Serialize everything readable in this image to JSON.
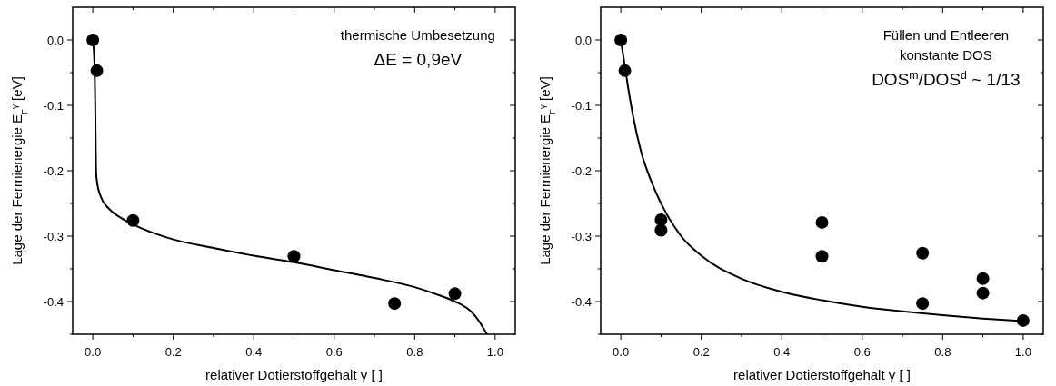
{
  "chart_data": [
    {
      "type": "scatter",
      "xlabel": "relativer Dotierstoffgehalt γ [  ]",
      "ylabel": "Lage der Fermienergie E$_{F}$$^{γ}$ [eV]",
      "annotations": [
        "thermische Umbesetzung",
        "ΔE = 0,9eV"
      ],
      "xlim": [
        -0.05,
        1.05
      ],
      "ylim": [
        -0.45,
        0.05
      ],
      "xticks": [
        {
          "value": 0,
          "label": "0.0"
        },
        {
          "value": 0.1,
          "label": null
        },
        {
          "value": 0.2,
          "label": "0.2"
        },
        {
          "value": 0.3,
          "label": null
        },
        {
          "value": 0.4,
          "label": "0.4"
        },
        {
          "value": 0.5,
          "label": null
        },
        {
          "value": 0.6,
          "label": "0.6"
        },
        {
          "value": 0.7,
          "label": null
        },
        {
          "value": 0.8,
          "label": "0.8"
        },
        {
          "value": 0.9,
          "label": null
        },
        {
          "value": 1,
          "label": "1.0"
        }
      ],
      "yticks": [
        {
          "value": -0.45,
          "label": null
        },
        {
          "value": -0.4,
          "label": "-0.4"
        },
        {
          "value": -0.35,
          "label": null
        },
        {
          "value": -0.3,
          "label": "-0.3"
        },
        {
          "value": -0.25,
          "label": null
        },
        {
          "value": -0.2,
          "label": "-0.2"
        },
        {
          "value": -0.15,
          "label": null
        },
        {
          "value": -0.1,
          "label": "-0.1"
        },
        {
          "value": -0.05,
          "label": null
        },
        {
          "value": 0,
          "label": "0.0"
        }
      ],
      "marker": "circle",
      "series": [
        {
          "type": "line",
          "marker": "none",
          "color": "#000000",
          "x": [
            0,
            0.003,
            0.005,
            0.006,
            0.007,
            0.008,
            0.01,
            0.02,
            0.04,
            0.07,
            0.1,
            0.15,
            0.2,
            0.3,
            0.4,
            0.5,
            0.6,
            0.7,
            0.8,
            0.85,
            0.9,
            0.94,
            0.96,
            0.975,
            0.98
          ],
          "values": [
            0,
            -0.02,
            -0.06,
            -0.1,
            -0.15,
            -0.2,
            -0.215,
            -0.24,
            -0.258,
            -0.272,
            -0.282,
            -0.295,
            -0.305,
            -0.318,
            -0.33,
            -0.34,
            -0.352,
            -0.364,
            -0.378,
            -0.388,
            -0.4,
            -0.415,
            -0.43,
            -0.445,
            -0.45
          ]
        },
        {
          "color": "#000000",
          "x": [
            0,
            0.01,
            0.1,
            0.5,
            0.75,
            0.9
          ],
          "values": [
            0,
            -0.047,
            -0.276,
            -0.331,
            -0.403,
            -0.388
          ]
        }
      ]
    },
    {
      "type": "scatter",
      "xlabel": "relativer Dotierstoffgehalt γ [  ]",
      "ylabel": "Lage der Fermienergie E$_{F}$$^{γ}$ [eV]",
      "annotations": [
        "Füllen und Entleeren",
        "konstante DOS",
        "DOS$^{m}$/DOS$^{d}$ ~ 1/13"
      ],
      "xlim": [
        -0.05,
        1.05
      ],
      "ylim": [
        -0.45,
        0.05
      ],
      "xticks": [
        {
          "value": 0,
          "label": "0.0"
        },
        {
          "value": 0.1,
          "label": null
        },
        {
          "value": 0.2,
          "label": "0.2"
        },
        {
          "value": 0.3,
          "label": null
        },
        {
          "value": 0.4,
          "label": "0.4"
        },
        {
          "value": 0.5,
          "label": null
        },
        {
          "value": 0.6,
          "label": "0.6"
        },
        {
          "value": 0.7,
          "label": null
        },
        {
          "value": 0.8,
          "label": "0.8"
        },
        {
          "value": 0.9,
          "label": null
        },
        {
          "value": 1,
          "label": "1.0"
        }
      ],
      "yticks": [
        {
          "value": -0.45,
          "label": null
        },
        {
          "value": -0.4,
          "label": "-0.4"
        },
        {
          "value": -0.35,
          "label": null
        },
        {
          "value": -0.3,
          "label": "-0.3"
        },
        {
          "value": -0.25,
          "label": null
        },
        {
          "value": -0.2,
          "label": "-0.2"
        },
        {
          "value": -0.15,
          "label": null
        },
        {
          "value": -0.1,
          "label": "-0.1"
        },
        {
          "value": -0.05,
          "label": null
        },
        {
          "value": 0,
          "label": "0.0"
        }
      ],
      "marker": "circle",
      "series": [
        {
          "type": "line",
          "marker": "none",
          "color": "#000000",
          "x": [
            0,
            0.01,
            0.02,
            0.03,
            0.05,
            0.075,
            0.1,
            0.15,
            0.2,
            0.3,
            0.4,
            0.5,
            0.6,
            0.7,
            0.8,
            0.9,
            1.0
          ],
          "values": [
            0,
            -0.04,
            -0.08,
            -0.115,
            -0.17,
            -0.215,
            -0.25,
            -0.3,
            -0.33,
            -0.365,
            -0.385,
            -0.398,
            -0.408,
            -0.415,
            -0.421,
            -0.426,
            -0.43
          ]
        },
        {
          "color": "#000000",
          "x": [
            0,
            0.01,
            0.1,
            0.1,
            0.5,
            0.5,
            0.75,
            0.75,
            0.9,
            0.9,
            1.0
          ],
          "values": [
            0,
            -0.047,
            -0.275,
            -0.291,
            -0.279,
            -0.331,
            -0.326,
            -0.403,
            -0.365,
            -0.387,
            -0.429
          ]
        }
      ]
    }
  ]
}
